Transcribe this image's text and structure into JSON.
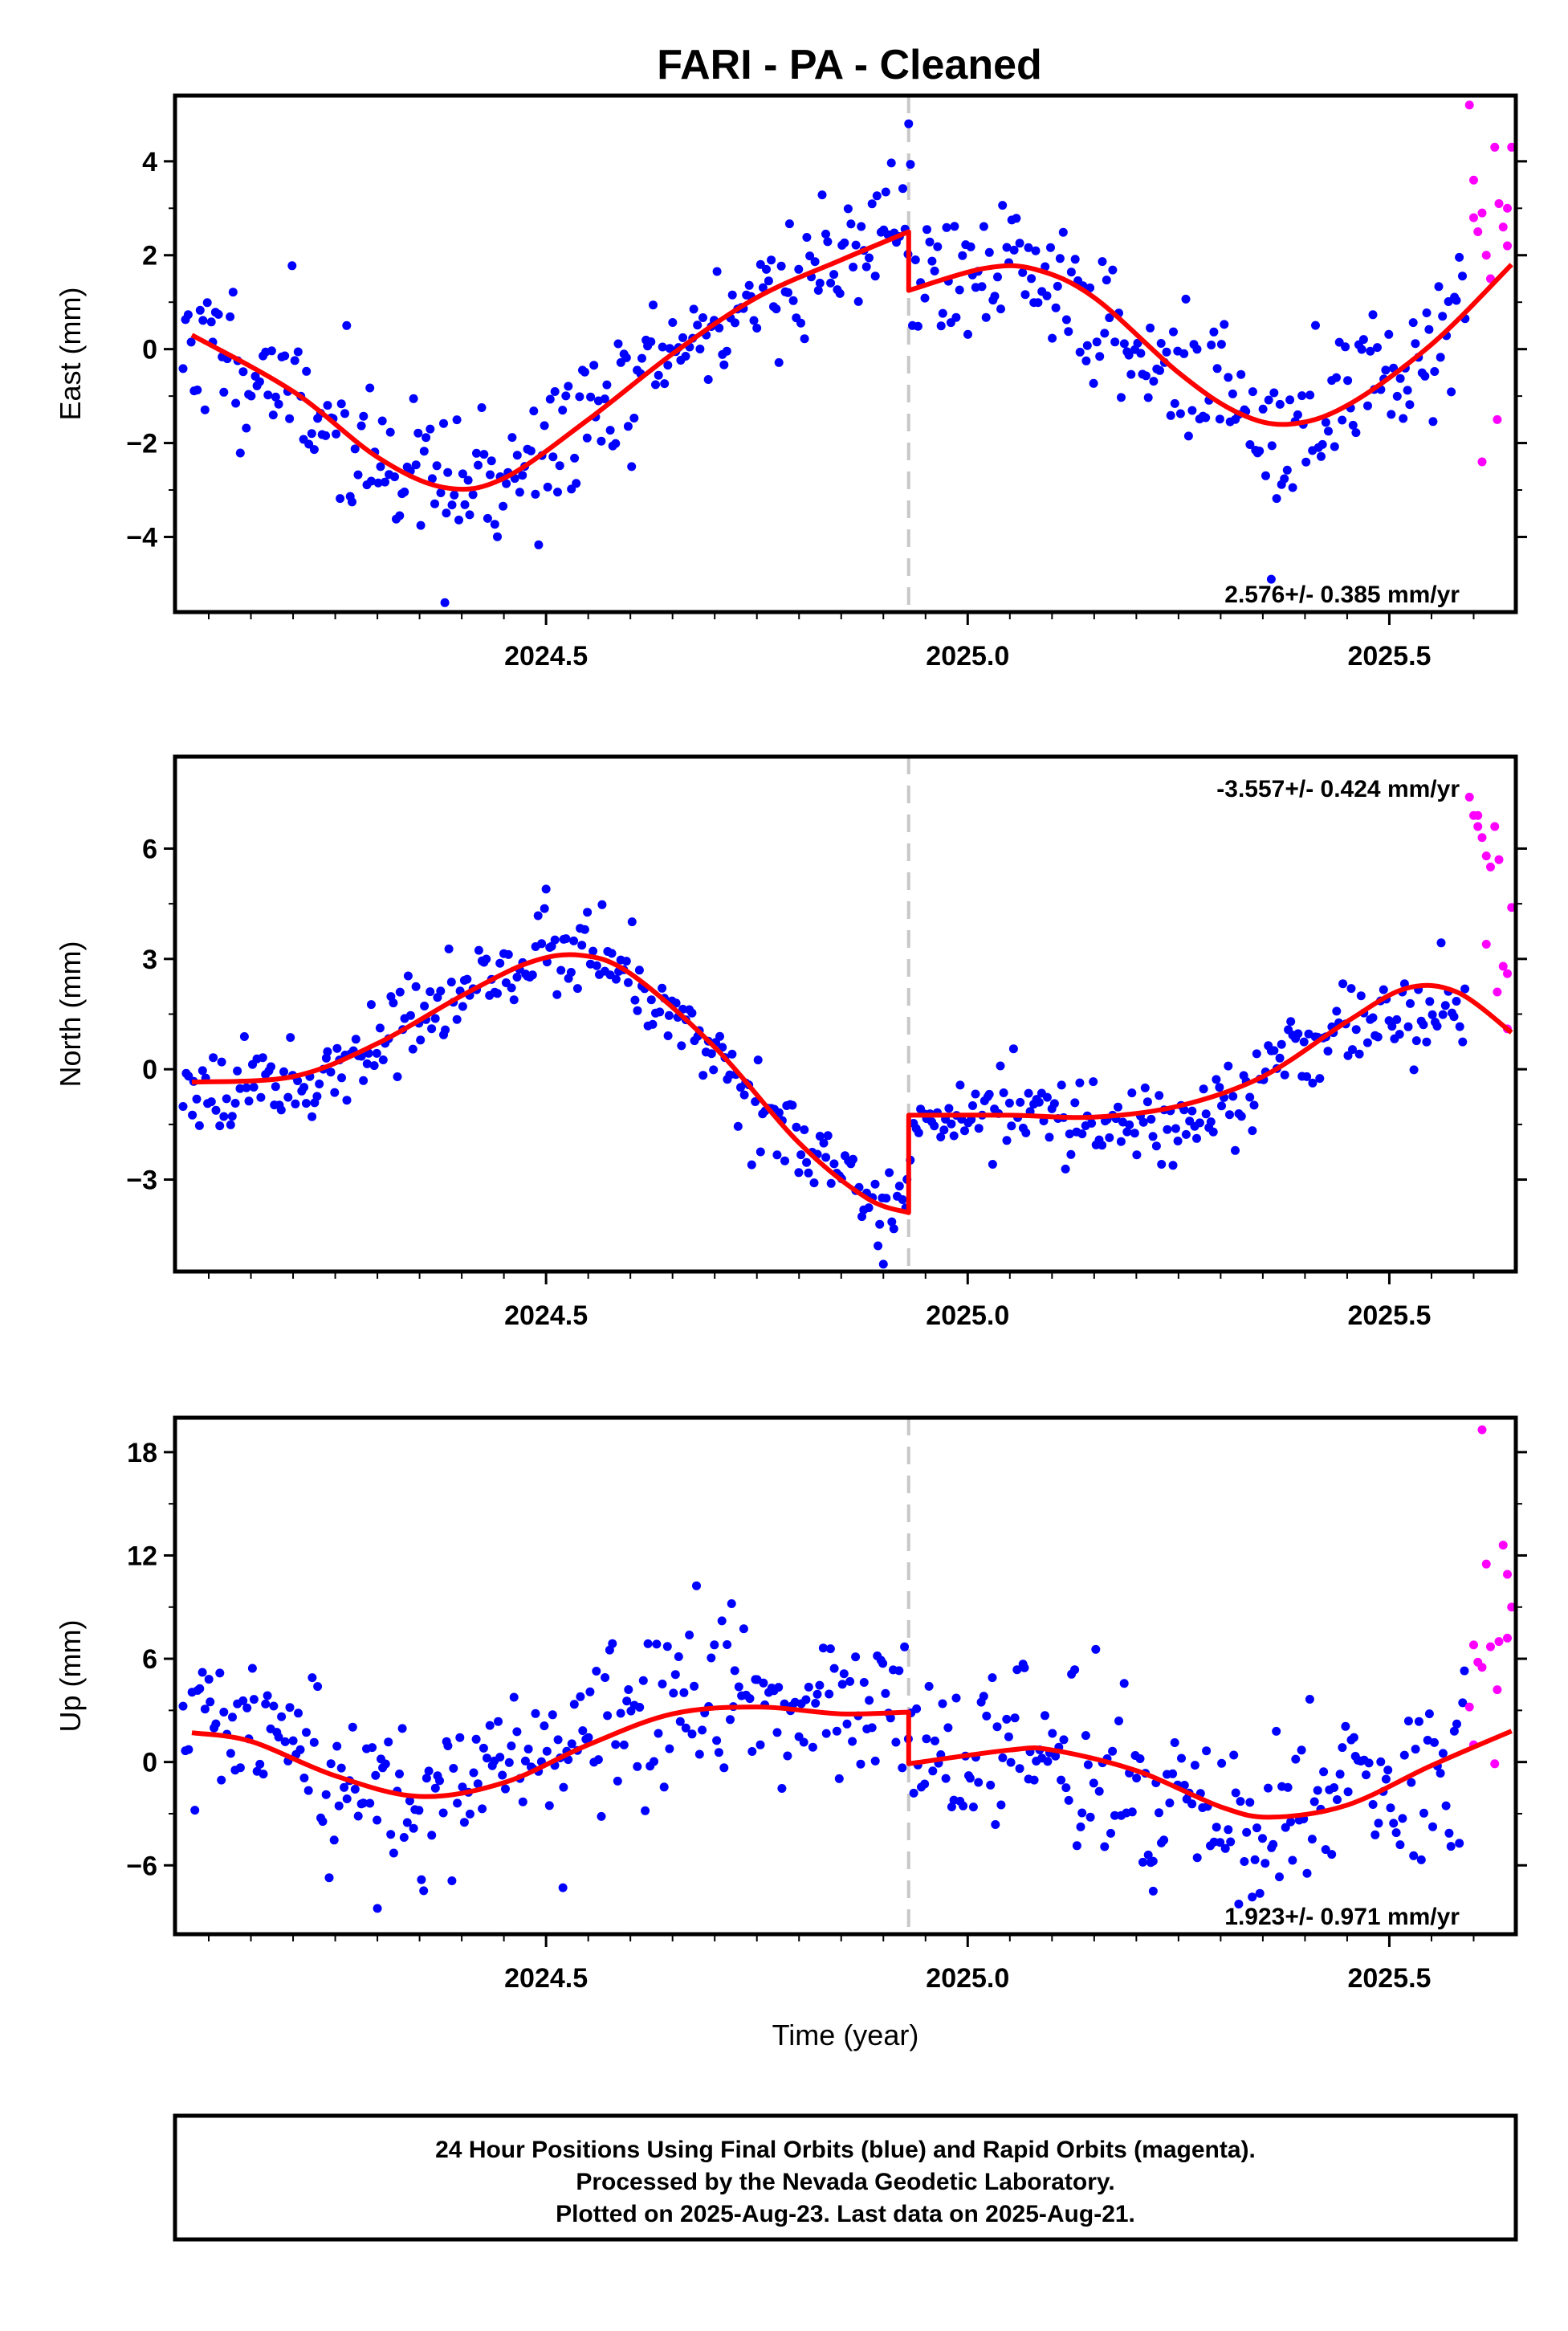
{
  "title": "FARI  - PA - Cleaned",
  "colors": {
    "final": "#0000ff",
    "rapid": "#ff00ff",
    "model": "#ff0000",
    "break": "#c8c8c8"
  },
  "footer": [
    "24 Hour Positions Using Final Orbits (blue) and Rapid Orbits (magenta).",
    "Processed by the Nevada Geodetic Laboratory.",
    "Plotted on 2025-Aug-23. Last data on 2025-Aug-21."
  ],
  "chart_data": [
    {
      "type": "scatter",
      "panel": "east",
      "ylabel": "East (mm)",
      "xlabel": "",
      "xlim": [
        2024.06,
        2025.65
      ],
      "ylim": [
        -5.6,
        5.4
      ],
      "xticks": [
        2024.5,
        2025.0,
        2025.5
      ],
      "xtick_labels": [
        "2024.5",
        "2025.0",
        "2025.5"
      ],
      "yticks": [
        -4,
        -2,
        0,
        2,
        4
      ],
      "ytick_labels": [
        "−4",
        "−2",
        "0",
        "2",
        "4"
      ],
      "rate_label": "2.576+/- 0.385 mm/yr",
      "rate_position": "bottom-right",
      "break_epoch": 2024.93,
      "model_knots": [
        [
          2024.08,
          0.3
        ],
        [
          2024.2,
          -0.9
        ],
        [
          2024.3,
          -2.3
        ],
        [
          2024.38,
          -2.95
        ],
        [
          2024.45,
          -2.75
        ],
        [
          2024.55,
          -1.5
        ],
        [
          2024.65,
          -0.1
        ],
        [
          2024.75,
          1.1
        ],
        [
          2024.85,
          1.9
        ],
        [
          2024.93,
          2.5
        ],
        [
          2024.93,
          1.25
        ],
        [
          2025.02,
          1.72
        ],
        [
          2025.08,
          1.7
        ],
        [
          2025.15,
          1.1
        ],
        [
          2025.25,
          -0.5
        ],
        [
          2025.32,
          -1.35
        ],
        [
          2025.38,
          -1.6
        ],
        [
          2025.45,
          -1.2
        ],
        [
          2025.55,
          0.1
        ],
        [
          2025.645,
          1.8
        ]
      ],
      "final_knots": [
        [
          2024.07,
          0.3
        ],
        [
          2024.2,
          -0.9
        ],
        [
          2024.3,
          -2.3
        ],
        [
          2024.38,
          -3.0
        ],
        [
          2024.45,
          -2.8
        ],
        [
          2024.55,
          -1.5
        ],
        [
          2024.65,
          -0.1
        ],
        [
          2024.75,
          1.1
        ],
        [
          2024.85,
          2.0
        ],
        [
          2024.93,
          3.0
        ],
        [
          2024.94,
          1.3
        ],
        [
          2025.02,
          1.7
        ],
        [
          2025.1,
          1.5
        ],
        [
          2025.2,
          0.0
        ],
        [
          2025.3,
          -1.0
        ],
        [
          2025.38,
          -2.3
        ],
        [
          2025.45,
          -0.8
        ],
        [
          2025.55,
          0.1
        ],
        [
          2025.59,
          1.3
        ]
      ],
      "final_noise": 0.75,
      "final_range": [
        2024.07,
        2025.59
      ],
      "final_count": 470,
      "rapid_points": [
        [
          2025.595,
          5.2
        ],
        [
          2025.6,
          2.8
        ],
        [
          2025.605,
          2.5
        ],
        [
          2025.61,
          2.9
        ],
        [
          2025.615,
          2.0
        ],
        [
          2025.62,
          1.5
        ],
        [
          2025.625,
          4.3
        ],
        [
          2025.63,
          3.1
        ],
        [
          2025.635,
          2.6
        ],
        [
          2025.64,
          2.2
        ],
        [
          2025.645,
          4.3
        ],
        [
          2025.61,
          -2.4
        ],
        [
          2025.628,
          -1.5
        ],
        [
          2025.6,
          3.6
        ],
        [
          2025.64,
          3.0
        ]
      ],
      "outliers": [
        [
          2024.93,
          4.8
        ],
        [
          2024.38,
          -5.4
        ],
        [
          2025.36,
          -4.9
        ]
      ],
      "seed": 11
    },
    {
      "type": "scatter",
      "panel": "north",
      "ylabel": "North (mm)",
      "xlabel": "",
      "xlim": [
        2024.06,
        2025.65
      ],
      "ylim": [
        -5.5,
        8.5
      ],
      "xticks": [
        2024.5,
        2025.0,
        2025.5
      ],
      "xtick_labels": [
        "2024.5",
        "2025.0",
        "2025.5"
      ],
      "yticks": [
        -3,
        0,
        3,
        6
      ],
      "ytick_labels": [
        "−3",
        "0",
        "3",
        "6"
      ],
      "rate_label": "-3.557+/- 0.424 mm/yr",
      "rate_position": "top-right",
      "break_epoch": 2024.93,
      "model_knots": [
        [
          2024.08,
          -0.35
        ],
        [
          2024.2,
          -0.2
        ],
        [
          2024.3,
          0.7
        ],
        [
          2024.4,
          2.0
        ],
        [
          2024.48,
          2.9
        ],
        [
          2024.54,
          3.1
        ],
        [
          2024.6,
          2.6
        ],
        [
          2024.7,
          0.6
        ],
        [
          2024.8,
          -2.0
        ],
        [
          2024.88,
          -3.5
        ],
        [
          2024.93,
          -3.9
        ],
        [
          2024.93,
          -1.25
        ],
        [
          2025.05,
          -1.25
        ],
        [
          2025.15,
          -1.3
        ],
        [
          2025.25,
          -1.0
        ],
        [
          2025.35,
          -0.2
        ],
        [
          2025.45,
          1.3
        ],
        [
          2025.52,
          2.2
        ],
        [
          2025.58,
          2.1
        ],
        [
          2025.645,
          1.0
        ]
      ],
      "final_knots": [
        [
          2024.07,
          -0.3
        ],
        [
          2024.2,
          -0.4
        ],
        [
          2024.3,
          0.7
        ],
        [
          2024.4,
          2.1
        ],
        [
          2024.48,
          3.0
        ],
        [
          2024.55,
          3.4
        ],
        [
          2024.62,
          2.3
        ],
        [
          2024.7,
          0.5
        ],
        [
          2024.8,
          -2.0
        ],
        [
          2024.88,
          -3.7
        ],
        [
          2024.925,
          -4.4
        ],
        [
          2024.935,
          -1.6
        ],
        [
          2025.05,
          -1.0
        ],
        [
          2025.15,
          -1.3
        ],
        [
          2025.25,
          -1.4
        ],
        [
          2025.35,
          -0.2
        ],
        [
          2025.45,
          1.2
        ],
        [
          2025.52,
          1.5
        ],
        [
          2025.59,
          1.6
        ]
      ],
      "final_noise": 0.55,
      "final_range": [
        2024.07,
        2025.59
      ],
      "final_count": 470,
      "rapid_points": [
        [
          2025.595,
          7.4
        ],
        [
          2025.6,
          6.9
        ],
        [
          2025.605,
          6.6
        ],
        [
          2025.61,
          6.3
        ],
        [
          2025.615,
          5.8
        ],
        [
          2025.62,
          5.5
        ],
        [
          2025.625,
          6.6
        ],
        [
          2025.63,
          5.7
        ],
        [
          2025.635,
          2.8
        ],
        [
          2025.64,
          2.6
        ],
        [
          2025.645,
          4.4
        ],
        [
          2025.615,
          3.4
        ],
        [
          2025.628,
          2.1
        ],
        [
          2025.64,
          1.1
        ],
        [
          2025.605,
          6.9
        ]
      ],
      "outliers": [
        [
          2024.5,
          4.9
        ],
        [
          2024.9,
          -5.3
        ]
      ],
      "seed": 23
    },
    {
      "type": "scatter",
      "panel": "up",
      "ylabel": "Up (mm)",
      "xlabel": "Time (year)",
      "xlim": [
        2024.06,
        2025.65
      ],
      "ylim": [
        -10,
        20
      ],
      "xticks": [
        2024.5,
        2025.0,
        2025.5
      ],
      "xtick_labels": [
        "2024.5",
        "2025.0",
        "2025.5"
      ],
      "yticks": [
        -6,
        0,
        6,
        12,
        18
      ],
      "ytick_labels": [
        "−6",
        "0",
        "6",
        "12",
        "18"
      ],
      "rate_label": "1.923+/- 0.971 mm/yr",
      "rate_position": "bottom-right",
      "break_epoch": 2024.93,
      "model_knots": [
        [
          2024.08,
          1.7
        ],
        [
          2024.15,
          1.2
        ],
        [
          2024.25,
          -0.8
        ],
        [
          2024.35,
          -2.0
        ],
        [
          2024.45,
          -1.2
        ],
        [
          2024.55,
          1.0
        ],
        [
          2024.65,
          2.8
        ],
        [
          2024.75,
          3.2
        ],
        [
          2024.85,
          2.8
        ],
        [
          2024.93,
          2.9
        ],
        [
          2024.93,
          -0.1
        ],
        [
          2025.05,
          0.7
        ],
        [
          2025.1,
          0.7
        ],
        [
          2025.2,
          -0.5
        ],
        [
          2025.3,
          -2.6
        ],
        [
          2025.36,
          -3.2
        ],
        [
          2025.45,
          -2.5
        ],
        [
          2025.55,
          -0.2
        ],
        [
          2025.645,
          1.8
        ]
      ],
      "final_knots": [
        [
          2024.07,
          2.0
        ],
        [
          2024.15,
          1.5
        ],
        [
          2024.25,
          -1.5
        ],
        [
          2024.35,
          -1.8
        ],
        [
          2024.45,
          -0.5
        ],
        [
          2024.55,
          1.5
        ],
        [
          2024.65,
          3.2
        ],
        [
          2024.75,
          3.5
        ],
        [
          2024.85,
          2.8
        ],
        [
          2024.93,
          2.7
        ],
        [
          2024.94,
          0.5
        ],
        [
          2025.05,
          0.8
        ],
        [
          2025.1,
          0.7
        ],
        [
          2025.2,
          -1.5
        ],
        [
          2025.3,
          -3.5
        ],
        [
          2025.36,
          -3.5
        ],
        [
          2025.45,
          -2.0
        ],
        [
          2025.55,
          -0.5
        ],
        [
          2025.59,
          0.0
        ]
      ],
      "final_noise": 2.3,
      "final_range": [
        2024.07,
        2025.59
      ],
      "final_count": 470,
      "rapid_points": [
        [
          2025.595,
          3.2
        ],
        [
          2025.6,
          6.8
        ],
        [
          2025.605,
          5.8
        ],
        [
          2025.61,
          19.3
        ],
        [
          2025.615,
          11.5
        ],
        [
          2025.62,
          6.7
        ],
        [
          2025.625,
          -0.1
        ],
        [
          2025.63,
          7.0
        ],
        [
          2025.635,
          12.6
        ],
        [
          2025.64,
          10.9
        ],
        [
          2025.645,
          9.0
        ],
        [
          2025.61,
          5.5
        ],
        [
          2025.628,
          4.2
        ],
        [
          2025.64,
          7.2
        ],
        [
          2025.6,
          1.0
        ]
      ],
      "outliers": [
        [
          2024.3,
          -8.5
        ],
        [
          2024.52,
          -7.3
        ],
        [
          2024.72,
          9.2
        ],
        [
          2025.22,
          -7.5
        ]
      ],
      "seed": 37
    }
  ]
}
